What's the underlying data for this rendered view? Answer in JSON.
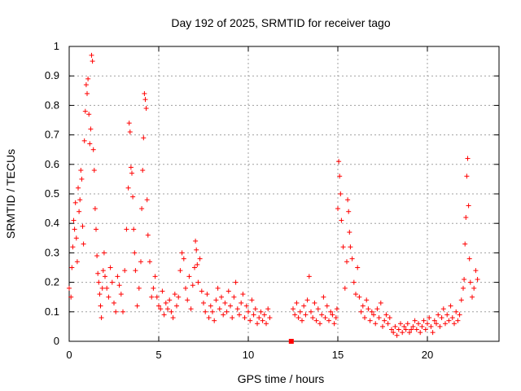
{
  "chart_data": {
    "type": "scatter",
    "title": "Day 192 of 2025, SRMTID for receiver tago",
    "xlabel": "GPS time / hours",
    "ylabel": "SRMTID / TECUs",
    "xlim": [
      0,
      24
    ],
    "ylim": [
      0,
      1
    ],
    "xticks": [
      0,
      5,
      10,
      15,
      20
    ],
    "yticks": [
      0,
      0.1,
      0.2,
      0.3,
      0.4,
      0.5,
      0.6,
      0.7,
      0.8,
      0.9,
      1
    ],
    "xtick_labels": [
      "0",
      "5",
      "10",
      "15",
      "20"
    ],
    "ytick_labels": [
      "0",
      "0.1",
      "0.2",
      "0.3",
      "0.4",
      "0.5",
      "0.6",
      "0.7",
      "0.8",
      "0.9",
      "1"
    ],
    "grid": true,
    "marker": "+",
    "color": "#ff0000",
    "series": [
      {
        "name": "SRMTID",
        "x": [
          0.0,
          0.1,
          0.15,
          0.2,
          0.25,
          0.3,
          0.35,
          0.4,
          0.45,
          0.5,
          0.55,
          0.6,
          0.65,
          0.7,
          0.75,
          0.8,
          0.85,
          0.9,
          0.95,
          1.0,
          1.05,
          1.1,
          1.15,
          1.2,
          1.25,
          1.3,
          1.35,
          1.4,
          1.45,
          1.5,
          1.55,
          1.6,
          1.65,
          1.7,
          1.75,
          1.8,
          1.85,
          1.9,
          1.95,
          2.0,
          2.1,
          2.2,
          2.3,
          2.4,
          2.5,
          2.6,
          2.7,
          2.8,
          2.9,
          3.0,
          3.1,
          3.2,
          3.3,
          3.35,
          3.4,
          3.45,
          3.5,
          3.55,
          3.6,
          3.65,
          3.7,
          3.8,
          3.9,
          4.0,
          4.05,
          4.1,
          4.15,
          4.2,
          4.25,
          4.3,
          4.35,
          4.4,
          4.5,
          4.6,
          4.7,
          4.8,
          4.9,
          5.0,
          5.1,
          5.2,
          5.3,
          5.4,
          5.5,
          5.6,
          5.7,
          5.8,
          5.9,
          6.0,
          6.1,
          6.2,
          6.3,
          6.4,
          6.5,
          6.6,
          6.7,
          6.8,
          6.9,
          7.0,
          7.05,
          7.1,
          7.15,
          7.2,
          7.3,
          7.4,
          7.5,
          7.6,
          7.7,
          7.8,
          7.9,
          8.0,
          8.1,
          8.2,
          8.3,
          8.4,
          8.5,
          8.6,
          8.7,
          8.8,
          8.9,
          9.0,
          9.1,
          9.2,
          9.3,
          9.4,
          9.5,
          9.6,
          9.7,
          9.8,
          9.9,
          10.0,
          10.1,
          10.2,
          10.3,
          10.4,
          10.5,
          10.6,
          10.7,
          10.8,
          10.9,
          11.0,
          11.1,
          11.2,
          12.4,
          12.5,
          12.6,
          12.7,
          12.8,
          12.9,
          13.0,
          13.1,
          13.2,
          13.3,
          13.4,
          13.5,
          13.6,
          13.7,
          13.8,
          13.9,
          14.0,
          14.1,
          14.2,
          14.3,
          14.4,
          14.5,
          14.6,
          14.7,
          14.8,
          14.9,
          14.95,
          15.0,
          15.05,
          15.1,
          15.15,
          15.2,
          15.3,
          15.4,
          15.5,
          15.55,
          15.6,
          15.65,
          15.7,
          15.8,
          15.9,
          16.0,
          16.1,
          16.2,
          16.3,
          16.4,
          16.5,
          16.6,
          16.7,
          16.8,
          16.9,
          17.0,
          17.1,
          17.2,
          17.3,
          17.4,
          17.5,
          17.6,
          17.7,
          17.8,
          17.9,
          18.0,
          18.1,
          18.2,
          18.3,
          18.4,
          18.5,
          18.6,
          18.7,
          18.8,
          18.9,
          19.0,
          19.1,
          19.2,
          19.3,
          19.4,
          19.5,
          19.6,
          19.7,
          19.8,
          19.9,
          20.0,
          20.1,
          20.2,
          20.3,
          20.4,
          20.5,
          20.6,
          20.7,
          20.8,
          20.9,
          21.0,
          21.1,
          21.2,
          21.3,
          21.4,
          21.5,
          21.6,
          21.7,
          21.8,
          21.9,
          22.0,
          22.05,
          22.1,
          22.15,
          22.2,
          22.25,
          22.3,
          22.35,
          22.4,
          22.5,
          22.6,
          22.7,
          22.8
        ],
        "y": [
          0.18,
          0.15,
          0.25,
          0.32,
          0.41,
          0.38,
          0.47,
          0.35,
          0.27,
          0.52,
          0.44,
          0.48,
          0.58,
          0.55,
          0.39,
          0.33,
          0.68,
          0.78,
          0.87,
          0.84,
          0.89,
          0.77,
          0.67,
          0.72,
          0.97,
          0.95,
          0.65,
          0.58,
          0.45,
          0.38,
          0.29,
          0.23,
          0.2,
          0.16,
          0.12,
          0.08,
          0.18,
          0.24,
          0.3,
          0.22,
          0.18,
          0.15,
          0.25,
          0.2,
          0.13,
          0.1,
          0.22,
          0.19,
          0.16,
          0.1,
          0.24,
          0.38,
          0.52,
          0.74,
          0.71,
          0.59,
          0.57,
          0.49,
          0.38,
          0.3,
          0.24,
          0.12,
          0.18,
          0.27,
          0.45,
          0.58,
          0.69,
          0.84,
          0.82,
          0.79,
          0.48,
          0.36,
          0.27,
          0.15,
          0.18,
          0.22,
          0.15,
          0.12,
          0.11,
          0.17,
          0.09,
          0.13,
          0.11,
          0.14,
          0.1,
          0.08,
          0.16,
          0.12,
          0.15,
          0.24,
          0.3,
          0.28,
          0.18,
          0.14,
          0.22,
          0.11,
          0.19,
          0.25,
          0.34,
          0.31,
          0.26,
          0.2,
          0.28,
          0.17,
          0.13,
          0.1,
          0.16,
          0.08,
          0.12,
          0.1,
          0.07,
          0.14,
          0.18,
          0.11,
          0.15,
          0.09,
          0.13,
          0.1,
          0.17,
          0.12,
          0.08,
          0.15,
          0.2,
          0.11,
          0.09,
          0.13,
          0.16,
          0.08,
          0.12,
          0.1,
          0.07,
          0.14,
          0.09,
          0.11,
          0.06,
          0.08,
          0.1,
          0.07,
          0.09,
          0.06,
          0.11,
          0.08,
          0.0,
          0.11,
          0.09,
          0.13,
          0.08,
          0.1,
          0.07,
          0.12,
          0.09,
          0.14,
          0.22,
          0.1,
          0.08,
          0.13,
          0.07,
          0.11,
          0.06,
          0.09,
          0.15,
          0.08,
          0.12,
          0.07,
          0.1,
          0.09,
          0.06,
          0.08,
          0.11,
          0.45,
          0.61,
          0.56,
          0.5,
          0.41,
          0.32,
          0.18,
          0.27,
          0.48,
          0.44,
          0.37,
          0.32,
          0.28,
          0.2,
          0.16,
          0.25,
          0.15,
          0.1,
          0.12,
          0.08,
          0.14,
          0.11,
          0.07,
          0.1,
          0.09,
          0.06,
          0.11,
          0.08,
          0.13,
          0.05,
          0.07,
          0.09,
          0.06,
          0.08,
          0.04,
          0.03,
          0.05,
          0.02,
          0.04,
          0.06,
          0.03,
          0.05,
          0.04,
          0.06,
          0.03,
          0.04,
          0.05,
          0.07,
          0.04,
          0.06,
          0.03,
          0.05,
          0.07,
          0.04,
          0.06,
          0.08,
          0.05,
          0.03,
          0.07,
          0.06,
          0.09,
          0.05,
          0.08,
          0.11,
          0.06,
          0.09,
          0.07,
          0.12,
          0.08,
          0.06,
          0.1,
          0.07,
          0.09,
          0.14,
          0.18,
          0.21,
          0.33,
          0.42,
          0.56,
          0.62,
          0.46,
          0.28,
          0.2,
          0.15,
          0.18,
          0.24,
          0.21
        ]
      }
    ],
    "gap_marker": {
      "x": 12.4,
      "y": 0.0
    }
  }
}
